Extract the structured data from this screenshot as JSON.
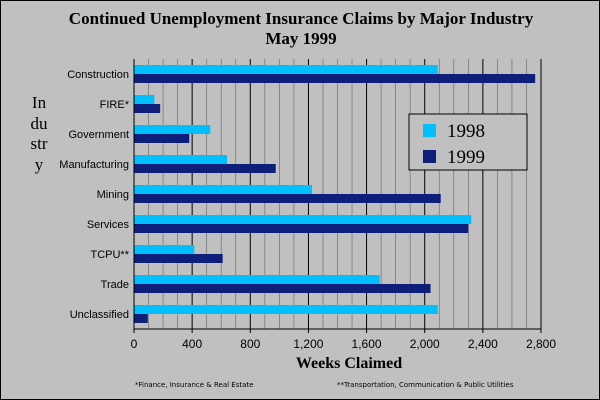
{
  "chart_data": {
    "type": "bar",
    "orientation": "horizontal",
    "title": "Continued Unemployment Insurance Claims by Major Industry",
    "subtitle": "May 1999",
    "xlabel": "Weeks Claimed",
    "ylabel": "Industry",
    "xlim": [
      0,
      2800
    ],
    "x_ticks": [
      "0",
      "400",
      "800",
      "1,200",
      "1,600",
      "2,000",
      "2,400",
      "2,800"
    ],
    "categories": [
      "Construction",
      "FIRE*",
      "Government",
      "Manufacturing",
      "Mining",
      "Services",
      "TCPU**",
      "Trade",
      "Unclassified"
    ],
    "series": [
      {
        "name": "1998",
        "color": "#00bfff",
        "values": [
          2090,
          140,
          525,
          640,
          1225,
          2320,
          415,
          1690,
          2090
        ]
      },
      {
        "name": "1999",
        "color": "#0d1f7a",
        "values": [
          2760,
          180,
          380,
          975,
          2110,
          2300,
          610,
          2040,
          95
        ]
      }
    ],
    "grid": "vertical",
    "legend_position": "right",
    "plot_background": "#c0c0c0",
    "footnotes": [
      "*Finance, Insurance & Real Estate",
      "**Transportation, Communication & Public Utilities"
    ]
  }
}
